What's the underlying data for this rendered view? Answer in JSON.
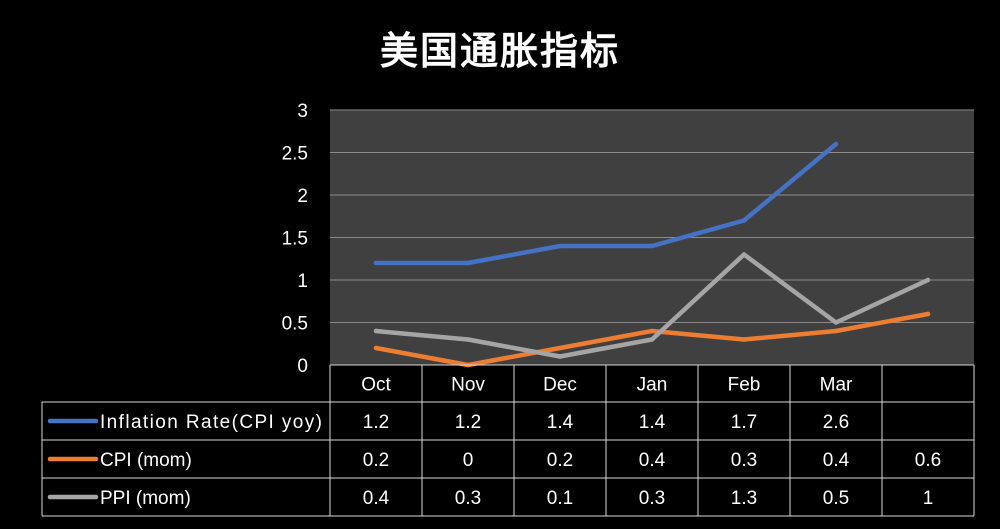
{
  "chart_data": {
    "type": "line",
    "title": "美国通胀指标",
    "categories": [
      "Oct",
      "Nov",
      "Dec",
      "Jan",
      "Feb",
      "Mar",
      ""
    ],
    "y_ticks": [
      "0",
      "0.5",
      "1",
      "1.5",
      "2",
      "2.5",
      "3"
    ],
    "ylim": [
      0,
      3
    ],
    "grid": true,
    "legend": "data-table",
    "series": [
      {
        "name": "Inflation Rate(CPI yoy)",
        "color": "#4472C4",
        "values": [
          1.2,
          1.2,
          1.4,
          1.4,
          1.7,
          2.6,
          null
        ],
        "labels": [
          "1.2",
          "1.2",
          "1.4",
          "1.4",
          "1.7",
          "2.6",
          ""
        ]
      },
      {
        "name": "CPI (mom)",
        "color": "#ED7D31",
        "values": [
          0.2,
          0,
          0.2,
          0.4,
          0.3,
          0.4,
          0.6
        ],
        "labels": [
          "0.2",
          "0",
          "0.2",
          "0.4",
          "0.3",
          "0.4",
          "0.6"
        ]
      },
      {
        "name": "PPI (mom)",
        "color": "#A5A5A5",
        "values": [
          0.4,
          0.3,
          0.1,
          0.3,
          1.3,
          0.5,
          1
        ],
        "labels": [
          "0.4",
          "0.3",
          "0.1",
          "0.3",
          "1.3",
          "0.5",
          "1"
        ]
      }
    ]
  },
  "colors": {
    "background": "#000000",
    "plot_area": "#404040",
    "grid": "#8C8C8C",
    "table_border": "#D9D9D9"
  }
}
